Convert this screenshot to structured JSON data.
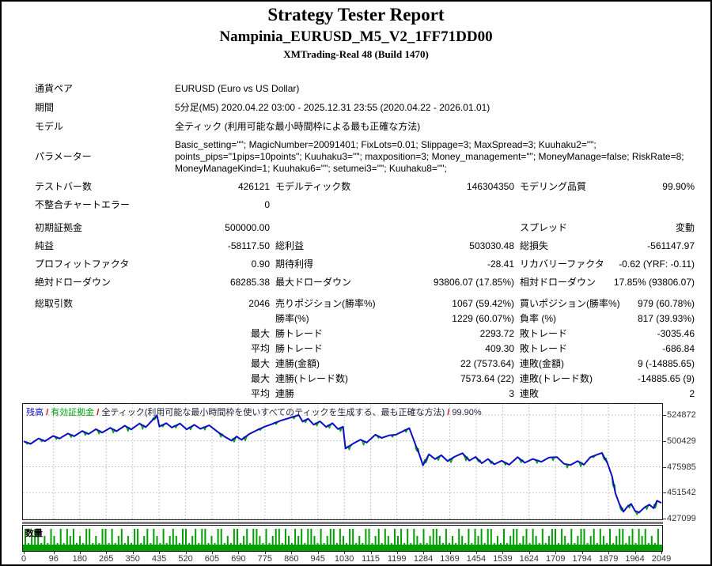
{
  "header": {
    "title": "Strategy Tester Report",
    "strategy": "Nampinia_EURUSD_M5_V2_1FF71DD00",
    "server": "XMTrading-Real 48 (Build 1470)"
  },
  "info_rows": [
    {
      "label": "通貨ペア",
      "value": "EURUSD (Euro vs US Dollar)",
      "tall": false
    },
    {
      "label": "期間",
      "value": "5分足(M5) 2020.04.22 03:00 - 2025.12.31 23:55 (2020.04.22 - 2026.01.01)",
      "tall": false
    },
    {
      "label": "モデル",
      "value": "全ティック (利用可能な最小時間枠による最も正確な方法)",
      "tall": false
    },
    {
      "label": "パラメーター",
      "value": "Basic_setting=\"\"; MagicNumber=20091401; FixLots=0.01; Slippage=3; MaxSpread=3; Kuuhaku2=\"\"; points_pips=\"1pips=10points\"; Kuuhaku3=\"\"; maxposition=3; Money_management=\"\"; MoneyManage=false; RiskRate=8; MoneyManageKind=1; Kuuhaku6=\"\"; setumei3=\"\"; Kuuhaku8=\"\";",
      "tall": true
    }
  ],
  "stat_rows": [
    {
      "sec": "a",
      "gap": false,
      "cells": [
        "テストバー数",
        "426121",
        "モデルティック数",
        "146304350",
        "モデリング品質",
        "99.90%"
      ]
    },
    {
      "sec": "a",
      "gap": false,
      "cells": [
        "不整合チャートエラー",
        "0",
        "",
        "",
        "",
        ""
      ]
    },
    {
      "sec": "b",
      "gap": true,
      "cells": [
        "初期証拠金",
        "500000.00",
        "",
        "",
        "スプレッド",
        "変動"
      ]
    },
    {
      "sec": "b",
      "gap": false,
      "cells": [
        "純益",
        "-58117.50",
        "総利益",
        "503030.48",
        "総損失",
        "-561147.97"
      ]
    },
    {
      "sec": "b",
      "gap": false,
      "cells": [
        "プロフィットファクタ",
        "0.90",
        "期待利得",
        "-28.41",
        "リカバリーファクタ",
        "-0.62 (YRF: -0.11)"
      ]
    },
    {
      "sec": "b",
      "gap": false,
      "cells": [
        "絶対ドローダウン",
        "68285.38",
        "最大ドローダウン",
        "93806.07 (17.85%)",
        "相対ドローダウン",
        "17.85% (93806.07)"
      ]
    },
    {
      "sec": "c",
      "gap": true,
      "cells": [
        "総取引数",
        "2046",
        "売りポジション(勝率%)",
        "1067 (59.42%)",
        "買いポジション(勝率%)",
        "979 (60.78%)"
      ]
    },
    {
      "sec": "c",
      "gap": false,
      "cells": [
        "",
        "",
        "勝率(%)",
        "1229 (60.07%)",
        "負率 (%)",
        "817 (39.93%)"
      ]
    },
    {
      "sec": "c",
      "gap": false,
      "cells": [
        "",
        "最大",
        "勝トレード",
        "2293.72",
        "敗トレード",
        "-3035.46"
      ]
    },
    {
      "sec": "c",
      "gap": false,
      "cells": [
        "",
        "平均",
        "勝トレード",
        "409.30",
        "敗トレード",
        "-686.84"
      ]
    },
    {
      "sec": "c",
      "gap": false,
      "cells": [
        "",
        "最大",
        "連勝(金額)",
        "22 (7573.64)",
        "連敗(金額)",
        "9 (-14885.65)"
      ]
    },
    {
      "sec": "c",
      "gap": false,
      "cells": [
        "",
        "最大",
        "連勝(トレード数)",
        "7573.64 (22)",
        "連敗(トレード数)",
        "-14885.65 (9)"
      ]
    },
    {
      "sec": "c",
      "gap": false,
      "cells": [
        "",
        "平均",
        "連勝",
        "3",
        "連敗",
        "2"
      ]
    }
  ],
  "chart_data": [
    {
      "type": "line",
      "legend": {
        "balance_label": "残高",
        "equity_label": "有効証拠金",
        "model_desc": "全ティック(利用可能な最小時間枠を使いすべてのティックを生成する、最も正確な方法)",
        "quality": "99.90%",
        "separator": "/"
      },
      "grid": true,
      "y_ticks": [
        524872,
        500429,
        475985,
        451542,
        427099
      ],
      "x_ticks": [
        0,
        96,
        180,
        265,
        350,
        435,
        520,
        605,
        690,
        775,
        860,
        945,
        1030,
        1115,
        1199,
        1284,
        1369,
        1454,
        1539,
        1624,
        1709,
        1794,
        1879,
        1964,
        2049
      ],
      "x_range": [
        0,
        2049
      ],
      "y_range": [
        427099,
        524872
      ],
      "series": [
        {
          "name": "残高",
          "color": "#0e0ec4",
          "points": [
            [
              0,
              500000
            ],
            [
              22,
              497600
            ],
            [
              48,
              502800
            ],
            [
              68,
              500200
            ],
            [
              95,
              505200
            ],
            [
              115,
              502600
            ],
            [
              142,
              507400
            ],
            [
              162,
              504800
            ],
            [
              188,
              509800
            ],
            [
              208,
              506900
            ],
            [
              232,
              511500
            ],
            [
              252,
              508300
            ],
            [
              278,
              512800
            ],
            [
              298,
              509600
            ],
            [
              325,
              514800
            ],
            [
              345,
              511200
            ],
            [
              372,
              516800
            ],
            [
              392,
              513400
            ],
            [
              412,
              519500
            ],
            [
              428,
              524600
            ],
            [
              436,
              514000
            ],
            [
              458,
              517200
            ],
            [
              476,
              513000
            ],
            [
              502,
              516800
            ],
            [
              524,
              511300
            ],
            [
              548,
              515600
            ],
            [
              568,
              511800
            ],
            [
              596,
              515200
            ],
            [
              622,
              509300
            ],
            [
              645,
              504600
            ],
            [
              668,
              500700
            ],
            [
              684,
              504600
            ],
            [
              700,
              501500
            ],
            [
              724,
              506800
            ],
            [
              748,
              510300
            ],
            [
              772,
              513600
            ],
            [
              798,
              516400
            ],
            [
              824,
              519400
            ],
            [
              852,
              521900
            ],
            [
              884,
              524800
            ],
            [
              896,
              518700
            ],
            [
              914,
              521400
            ],
            [
              932,
              515700
            ],
            [
              952,
              518900
            ],
            [
              972,
              513600
            ],
            [
              992,
              517100
            ],
            [
              1010,
              511600
            ],
            [
              1026,
              513800
            ],
            [
              1034,
              493200
            ],
            [
              1058,
              497800
            ],
            [
              1082,
              501600
            ],
            [
              1102,
              498800
            ],
            [
              1130,
              506300
            ],
            [
              1150,
              503200
            ],
            [
              1174,
              505600
            ],
            [
              1196,
              506300
            ],
            [
              1218,
              509400
            ],
            [
              1239,
              512400
            ],
            [
              1258,
              497500
            ],
            [
              1270,
              488700
            ],
            [
              1283,
              477300
            ],
            [
              1302,
              487800
            ],
            [
              1322,
              483200
            ],
            [
              1342,
              486900
            ],
            [
              1362,
              481300
            ],
            [
              1384,
              485400
            ],
            [
              1410,
              488800
            ],
            [
              1432,
              481800
            ],
            [
              1452,
              485300
            ],
            [
              1472,
              479300
            ],
            [
              1492,
              483400
            ],
            [
              1512,
              478300
            ],
            [
              1536,
              481700
            ],
            [
              1560,
              477900
            ],
            [
              1587,
              485100
            ],
            [
              1610,
              479800
            ],
            [
              1636,
              483400
            ],
            [
              1663,
              480700
            ],
            [
              1688,
              484700
            ],
            [
              1714,
              485100
            ],
            [
              1736,
              478800
            ],
            [
              1757,
              477600
            ],
            [
              1780,
              481400
            ],
            [
              1800,
              477900
            ],
            [
              1820,
              484900
            ],
            [
              1842,
              487400
            ],
            [
              1858,
              489100
            ],
            [
              1876,
              479300
            ],
            [
              1891,
              466700
            ],
            [
              1901,
              451300
            ],
            [
              1914,
              440900
            ],
            [
              1927,
              433500
            ],
            [
              1940,
              438400
            ],
            [
              1952,
              441000
            ],
            [
              1964,
              434400
            ],
            [
              1977,
              432800
            ],
            [
              1994,
              437400
            ],
            [
              2010,
              440300
            ],
            [
              2024,
              436900
            ],
            [
              2035,
              444000
            ],
            [
              2049,
              441883
            ]
          ]
        },
        {
          "name": "有効証拠金",
          "color": "#00a010",
          "derived": "balance_with_dips",
          "dip_base": 1400,
          "dip_var": 2300,
          "dip_floor": 427600
        }
      ]
    },
    {
      "type": "histogram",
      "label": "数量",
      "color": "#00a000",
      "max_level": 3,
      "base_band_level": 1,
      "levels_digits": "312331213213132312133121331312312133123132131232133123133121331213312313321312331321323133213123313213312133123132132313132131233213121321313231331213123312313213123313213123312313213123312313231213"
    }
  ],
  "colors": {
    "balance_line": "#0e0ec4",
    "equity_line": "#00a010",
    "volume_bars": "#00a000",
    "legend_separator": "#d40000",
    "grid_line": "#c9c9c9",
    "chart_border": "#1a1a1a",
    "divider_band": "#7f7f7f",
    "page_border": "#000000"
  }
}
